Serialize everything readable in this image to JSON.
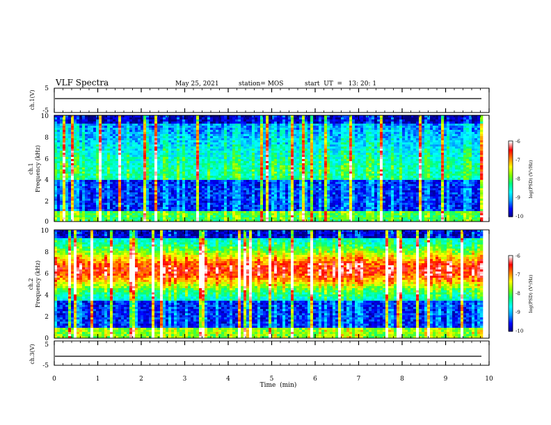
{
  "header": {
    "title": "VLF Spectra",
    "date": "May 25, 2021",
    "station": "station= MOS",
    "start": "start  UT  =   13: 20: 1"
  },
  "chart_data": [
    {
      "type": "line",
      "panel": "ch.1 waveform",
      "ylabel": "ch.1(V)",
      "y_ticks": [
        "5",
        "-5"
      ],
      "ylim": [
        -5,
        5
      ],
      "series": [
        {
          "values_const": 0
        }
      ]
    },
    {
      "type": "heatmap",
      "panel": "ch.1 spectrogram",
      "ylabel": "ch.1\nFrequency (kHz)",
      "ylabel_lines": [
        "ch.1",
        "Frequency (kHz)"
      ],
      "y_ticks": [
        "0",
        "2",
        "4",
        "6",
        "8",
        "10"
      ],
      "ylim": [
        0,
        10
      ],
      "xlim": [
        0,
        9.83
      ],
      "band_center_khz": 4.5,
      "noise_floor": "low",
      "colorbar": {
        "label": "log(PSD) (V²/Hz)",
        "ticks": [
          "-6",
          "-7",
          "-8",
          "-9",
          "-10"
        ],
        "range": [
          -10,
          -6
        ],
        "colors": [
          "#000080",
          "#0000ff",
          "#00a0ff",
          "#00ffff",
          "#00ff80",
          "#80ff00",
          "#ffff00",
          "#ff8000",
          "#ff0000",
          "#ffffff"
        ]
      }
    },
    {
      "type": "heatmap",
      "panel": "ch.2 spectrogram",
      "ylabel": "ch.2\nFrequency (kHz)",
      "ylabel_lines": [
        "ch.2",
        "Frequency (kHz)"
      ],
      "y_ticks": [
        "0",
        "2",
        "4",
        "6",
        "8",
        "10"
      ],
      "ylim": [
        0,
        10
      ],
      "xlim": [
        0,
        9.83
      ],
      "band_center_khz": 6.3,
      "noise_floor": "high",
      "colorbar": {
        "label": "log(PSD) (V²/Hz)",
        "ticks": [
          "-6",
          "-7",
          "-8",
          "-9",
          "-10"
        ],
        "range": [
          -10,
          -6
        ],
        "colors": [
          "#000080",
          "#0000ff",
          "#00a0ff",
          "#00ffff",
          "#00ff80",
          "#80ff00",
          "#ffff00",
          "#ff8000",
          "#ff0000",
          "#ffffff"
        ]
      }
    },
    {
      "type": "line",
      "panel": "ch.3 waveform",
      "ylabel": "ch.3(V)",
      "y_ticks": [
        "5",
        "-5"
      ],
      "ylim": [
        -5,
        5
      ],
      "series": [
        {
          "values_const": 0
        }
      ]
    }
  ],
  "x_axis": {
    "label": "Time  (min)",
    "ticks": [
      "0",
      "1",
      "2",
      "3",
      "4",
      "5",
      "6",
      "7",
      "8",
      "9",
      "10"
    ],
    "range": [
      0,
      10
    ]
  },
  "colors": {
    "frame": "#000000",
    "background": "#ffffff"
  }
}
